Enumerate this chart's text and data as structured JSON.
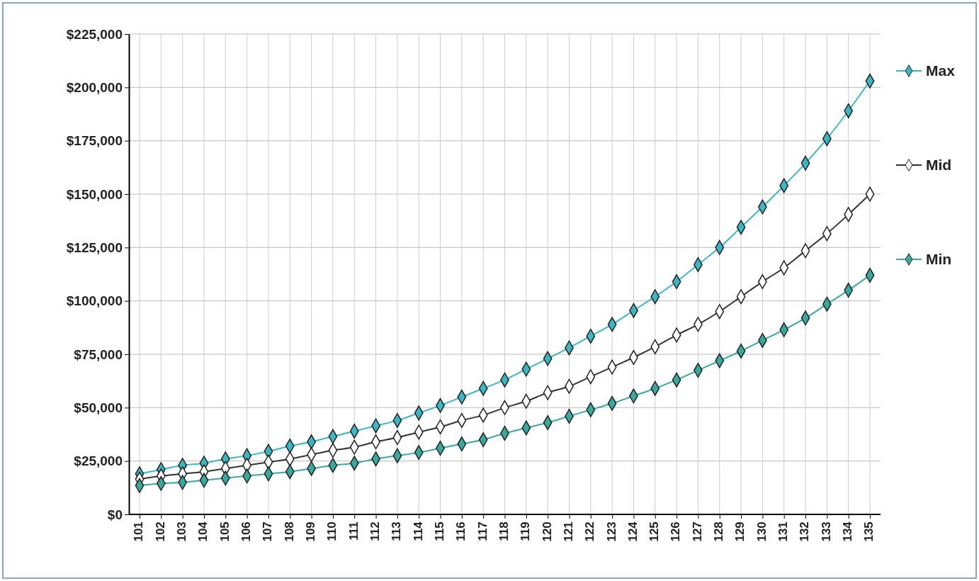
{
  "chart_data": {
    "type": "line",
    "categories": [
      "101",
      "102",
      "103",
      "104",
      "105",
      "106",
      "107",
      "108",
      "109",
      "110",
      "111",
      "112",
      "113",
      "114",
      "115",
      "116",
      "117",
      "118",
      "119",
      "120",
      "121",
      "122",
      "123",
      "124",
      "125",
      "126",
      "127",
      "128",
      "129",
      "130",
      "131",
      "132",
      "133",
      "134",
      "135"
    ],
    "series": [
      {
        "name": "Max",
        "color": "#3fb5c4",
        "values": [
          19000,
          21000,
          23000,
          24000,
          26000,
          27500,
          29500,
          32000,
          34000,
          36500,
          39000,
          41500,
          44000,
          47500,
          51000,
          55000,
          59000,
          63000,
          68000,
          73000,
          78000,
          83500,
          89000,
          95500,
          102000,
          109000,
          117000,
          125000,
          134500,
          144000,
          154000,
          164500,
          176000,
          189000,
          203000
        ]
      },
      {
        "name": "Mid",
        "color": "#333333",
        "values": [
          16500,
          18000,
          19000,
          20000,
          21500,
          23000,
          24500,
          26000,
          28000,
          30000,
          31500,
          34000,
          36000,
          38500,
          41000,
          44000,
          46500,
          50000,
          53000,
          57000,
          60000,
          64500,
          69000,
          73500,
          78500,
          84000,
          89000,
          95000,
          102000,
          109000,
          115500,
          123500,
          131500,
          140500,
          150000
        ]
      },
      {
        "name": "Min",
        "color": "#3aa89c",
        "values": [
          13500,
          14500,
          15000,
          16000,
          17000,
          18000,
          19000,
          20000,
          21500,
          23000,
          24000,
          26000,
          27500,
          29000,
          31000,
          33000,
          35000,
          38000,
          40500,
          43000,
          46000,
          49000,
          52000,
          55500,
          59000,
          63000,
          67500,
          72000,
          76500,
          81500,
          86500,
          92000,
          98500,
          105000,
          112000
        ]
      }
    ],
    "ylim": [
      0,
      225000
    ],
    "yticks": [
      {
        "value": 0,
        "label": "$0"
      },
      {
        "value": 25000,
        "label": "$25,000"
      },
      {
        "value": 50000,
        "label": "$50,000"
      },
      {
        "value": 75000,
        "label": "$75,000"
      },
      {
        "value": 100000,
        "label": "$100,000"
      },
      {
        "value": 125000,
        "label": "$125,000"
      },
      {
        "value": 150000,
        "label": "$150,000"
      },
      {
        "value": 175000,
        "label": "$175,000"
      },
      {
        "value": 200000,
        "label": "$200,000"
      },
      {
        "value": 225000,
        "label": "$225,000"
      }
    ],
    "grid": true,
    "legend": "right",
    "marker": "diamond",
    "line_style": "solid"
  }
}
